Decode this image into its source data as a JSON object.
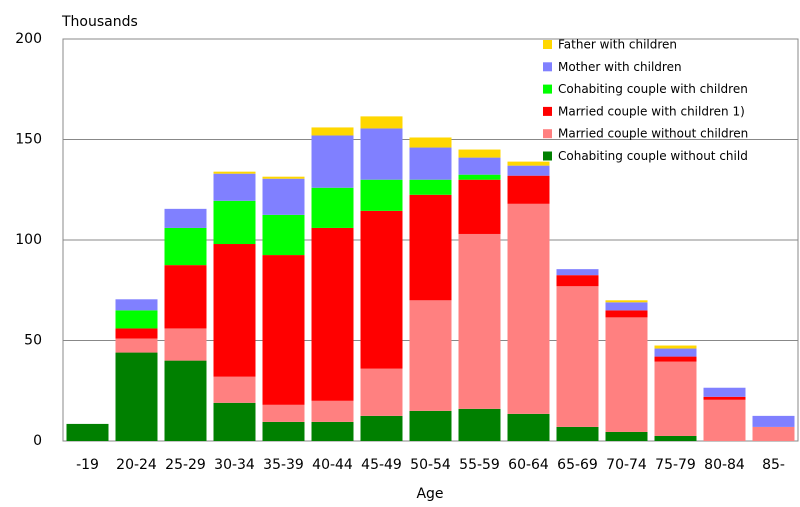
{
  "chart_data": {
    "type": "stacked_bar",
    "y_unit_label": "Thousands",
    "x_label": "Age",
    "categories": [
      "-19",
      "20-24",
      "25-29",
      "30-34",
      "35-39",
      "40-44",
      "45-49",
      "50-54",
      "55-59",
      "60-64",
      "65-69",
      "70-74",
      "75-79",
      "80-84",
      "85-"
    ],
    "series": [
      {
        "name": "Cohabiting couple without child",
        "color": "#008000",
        "values": [
          8.5,
          44,
          40,
          19,
          9.5,
          9.5,
          12.5,
          15,
          16,
          13.5,
          7,
          4.5,
          2.5,
          0,
          0
        ]
      },
      {
        "name": "Married couple without children",
        "color": "#ff8080",
        "values": [
          0,
          7,
          16,
          13,
          8.5,
          10.5,
          23.5,
          55,
          87,
          104.5,
          70,
          57,
          37,
          20.5,
          7
        ]
      },
      {
        "name": "Married couple with children 1)",
        "color": "#ff0000",
        "values": [
          0,
          5,
          31.5,
          66,
          74.5,
          86,
          78.5,
          52.5,
          27,
          14,
          5.5,
          3.5,
          2.5,
          1.5,
          0
        ]
      },
      {
        "name": "Cohabiting couple with children",
        "color": "#00ff00",
        "values": [
          0,
          9,
          18.5,
          21.5,
          20,
          20,
          15.5,
          7.5,
          2.5,
          0,
          0,
          0,
          0,
          0,
          0
        ]
      },
      {
        "name": "Mother with children",
        "color": "#8080ff",
        "values": [
          0,
          5.5,
          9.5,
          13.5,
          18,
          26,
          25.5,
          16,
          8.5,
          5,
          3,
          4,
          4,
          4.5,
          5.5
        ]
      },
      {
        "name": "Father with children",
        "color": "#ffd700",
        "values": [
          0,
          0,
          0,
          1,
          1,
          4,
          6,
          5,
          4,
          2,
          0,
          1,
          1.5,
          0,
          0
        ]
      }
    ],
    "ylim": [
      0,
      200
    ],
    "yticks": [
      0,
      50,
      100,
      150,
      200
    ],
    "grid": true
  }
}
